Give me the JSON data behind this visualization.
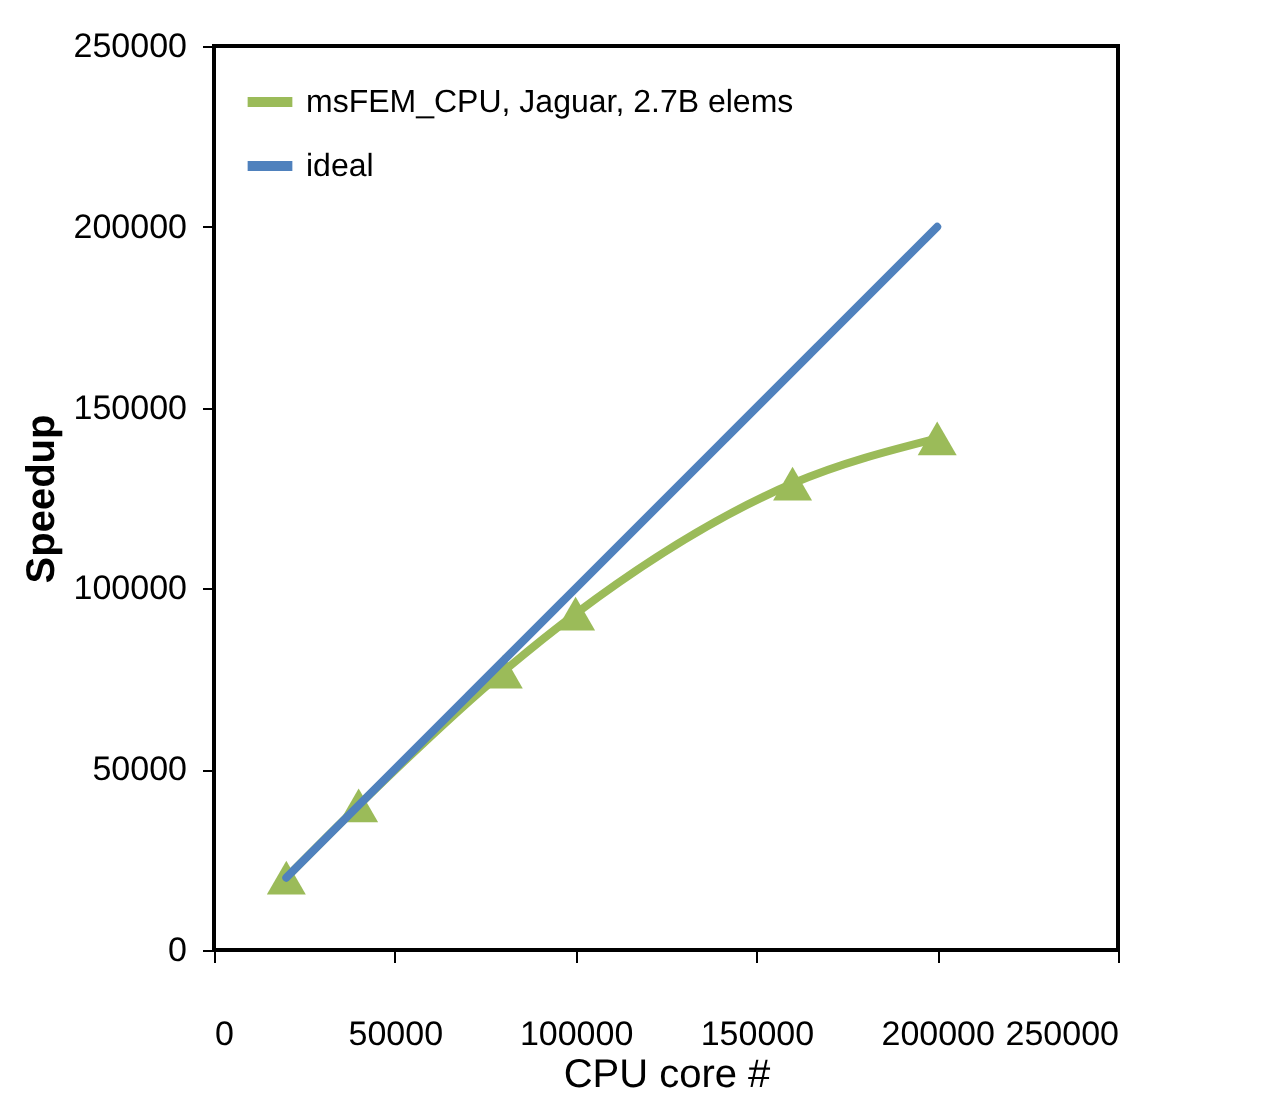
{
  "chart_data": {
    "type": "line",
    "xlabel": "CPU core #",
    "ylabel": "Speedup",
    "xlim": [
      0,
      250000
    ],
    "xticks": [
      0,
      50000,
      100000,
      150000,
      200000,
      250000
    ],
    "ylim": [
      0,
      250000
    ],
    "yticks": [
      0,
      50000,
      100000,
      150000,
      200000,
      250000
    ],
    "grid": false,
    "legend": "top left",
    "marker": "triangle",
    "series": [
      {
        "name": "msFEM_CPU, Jaguar, 2.7B elems",
        "color": "#9bbb59",
        "x": [
          20000,
          40000,
          80000,
          100000,
          160000,
          200000
        ],
        "values": [
          20000,
          40000,
          77000,
          93000,
          129000,
          141500
        ]
      },
      {
        "name": "ideal",
        "color": "#4f81bd",
        "marker": "none",
        "x": [
          20000,
          200000
        ],
        "values": [
          20000,
          200000
        ]
      }
    ]
  }
}
